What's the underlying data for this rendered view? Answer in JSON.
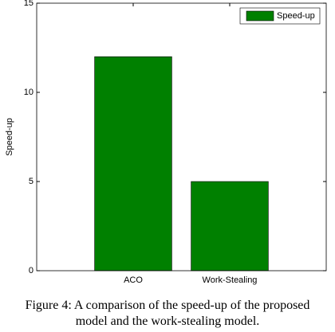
{
  "chart_data": {
    "type": "bar",
    "y_label": "Speed-up",
    "categories": [
      "ACO",
      "Work-Stealing"
    ],
    "series": [
      {
        "name": "Speed-up",
        "color": "#008000",
        "values": [
          12,
          5
        ]
      }
    ],
    "ylim": [
      0,
      15
    ],
    "yticks": [
      0,
      5,
      10,
      15
    ],
    "legend": "top-right",
    "grid": false
  },
  "caption": "Figure 4: A comparison of the speed-up of the proposed model and the work-stealing model."
}
